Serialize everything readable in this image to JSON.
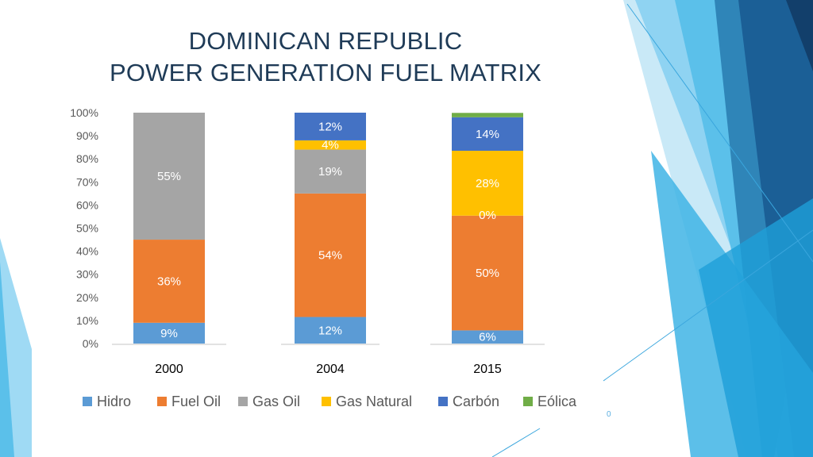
{
  "slide": {
    "title_line1": "DOMINICAN REPUBLIC",
    "title_line2": "POWER GENERATION FUEL MATRIX",
    "slide_number": "0"
  },
  "colors": {
    "Hidro": "#5b9bd5",
    "Fuel Oil": "#ed7d31",
    "Gas Oil": "#a5a5a5",
    "Gas Natural": "#ffc000",
    "Carbón": "#4472c4",
    "Eólica": "#70ad47"
  },
  "chart_data": {
    "type": "bar",
    "stacked": true,
    "categories": [
      "2000",
      "2004",
      "2015"
    ],
    "y_ticks": [
      "0%",
      "10%",
      "20%",
      "30%",
      "40%",
      "50%",
      "60%",
      "70%",
      "80%",
      "90%",
      "100%"
    ],
    "ylim": [
      0,
      100
    ],
    "legend_position": "bottom",
    "series": [
      {
        "name": "Hidro",
        "values": [
          9,
          11.5,
          5.7
        ],
        "labels": [
          "9%",
          "12%",
          "6%"
        ]
      },
      {
        "name": "Fuel Oil",
        "values": [
          36,
          53.5,
          49.7
        ],
        "labels": [
          "36%",
          "54%",
          "50%"
        ]
      },
      {
        "name": "Gas Oil",
        "values": [
          55,
          19,
          0
        ],
        "labels": [
          "55%",
          "19%",
          ""
        ]
      },
      {
        "name": "Gas Natural",
        "values": [
          0,
          4,
          28.1
        ],
        "labels": [
          "",
          "4%",
          "28%"
        ]
      },
      {
        "name": "Carbón",
        "values": [
          0,
          12,
          14.5
        ],
        "labels": [
          "",
          "12%",
          "14%"
        ]
      },
      {
        "name": "Eólica",
        "values": [
          0,
          0,
          1.9
        ],
        "labels": [
          "",
          "",
          ""
        ]
      }
    ],
    "annotations": [
      {
        "category": "2015",
        "text": "0%"
      }
    ]
  }
}
